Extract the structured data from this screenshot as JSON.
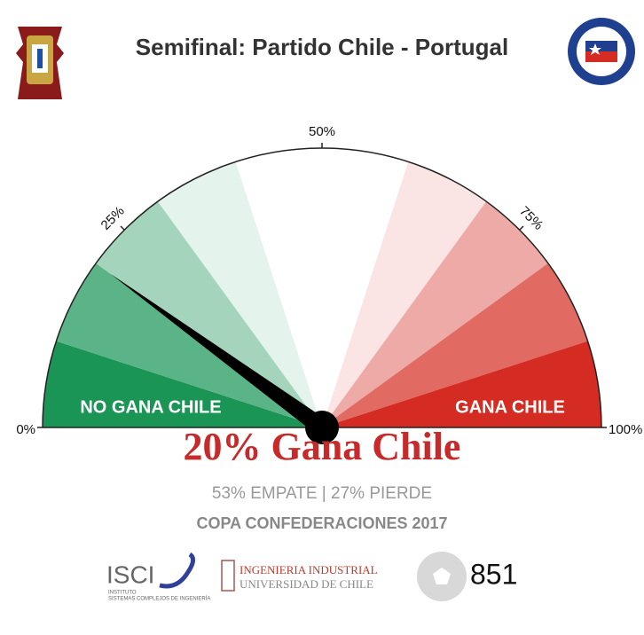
{
  "chart_data": {
    "type": "gauge",
    "title": "Semifinal: Partido Chile - Portugal",
    "value": 20,
    "xlim": [
      0,
      100
    ],
    "xticks": [
      {
        "value": 0,
        "label": "0%"
      },
      {
        "value": 25,
        "label": "25%"
      },
      {
        "value": 50,
        "label": "50%"
      },
      {
        "value": 75,
        "label": "75%"
      },
      {
        "value": 100,
        "label": "100%"
      }
    ],
    "bands": {
      "bins": [
        0,
        10,
        20,
        30,
        40,
        50,
        60,
        70,
        80,
        90,
        100
      ],
      "colors": [
        "#1b9556",
        "#5bb487",
        "#a4d4bb",
        "#e4f3eb",
        "#ffffff",
        "#ffffff",
        "#fbe4e4",
        "#eeaaa6",
        "#e16b62",
        "#d42b22"
      ]
    },
    "left_label": "NO GANA CHILE",
    "right_label": "GANA CHILE",
    "headline": "20% Gana Chile",
    "subtitle": "53% EMPATE | 27% PIERDE",
    "footer": "COPA CONFEDERACIONES 2017"
  },
  "logos": {
    "isci": "ISCI",
    "isci_sub1": "INSTITUTO",
    "isci_sub2": "SISTEMAS COMPLEJOS DE INGENIERÍA",
    "ii_line1": "INGENIERIA INDUSTRIAL",
    "ii_line2": "UNIVERSIDAD DE CHILE",
    "count": "851"
  }
}
